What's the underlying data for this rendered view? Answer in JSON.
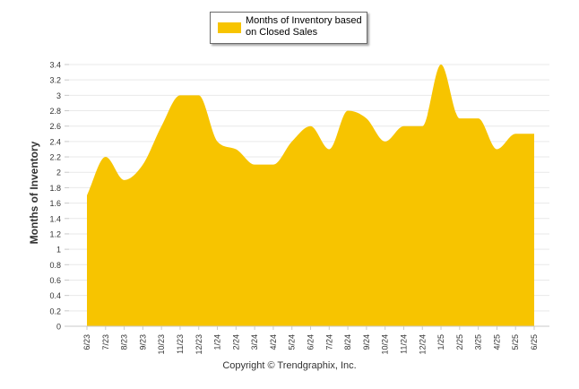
{
  "chart_data": {
    "type": "area",
    "categories": [
      "6/23",
      "7/23",
      "8/23",
      "9/23",
      "10/23",
      "11/23",
      "12/23",
      "1/24",
      "2/24",
      "3/24",
      "4/24",
      "5/24",
      "6/24",
      "7/24",
      "8/24",
      "9/24",
      "10/24",
      "11/24",
      "12/24",
      "1/25",
      "2/25",
      "3/25",
      "4/25",
      "5/25",
      "6/25"
    ],
    "series": [
      {
        "name": "Months of Inventory based on Closed Sales",
        "values": [
          1.7,
          2.2,
          1.9,
          2.1,
          2.6,
          3.0,
          3.0,
          2.4,
          2.3,
          2.1,
          2.1,
          2.4,
          2.6,
          2.3,
          2.8,
          2.7,
          2.4,
          2.6,
          2.6,
          3.4,
          2.7,
          2.7,
          2.3,
          2.5,
          2.5
        ]
      }
    ],
    "xlabel": "",
    "ylabel": "Months of Inventory",
    "ylim": [
      0,
      3.4
    ],
    "yticks": [
      "0",
      "0.2",
      "0.4",
      "0.6",
      "0.8",
      "1",
      "1.2",
      "1.4",
      "1.6",
      "1.8",
      "2",
      "2.2",
      "2.4",
      "2.6",
      "2.8",
      "3",
      "3.2",
      "3.4"
    ],
    "grid": true,
    "legend_position": "top-center",
    "colors": {
      "fill": "#F7C400",
      "grid": "#e9e9e9",
      "axis": "#c9c9c9"
    }
  },
  "legend": {
    "label": "Months of Inventory based on Closed Sales"
  },
  "credit": "Copyright © Trendgraphix, Inc."
}
